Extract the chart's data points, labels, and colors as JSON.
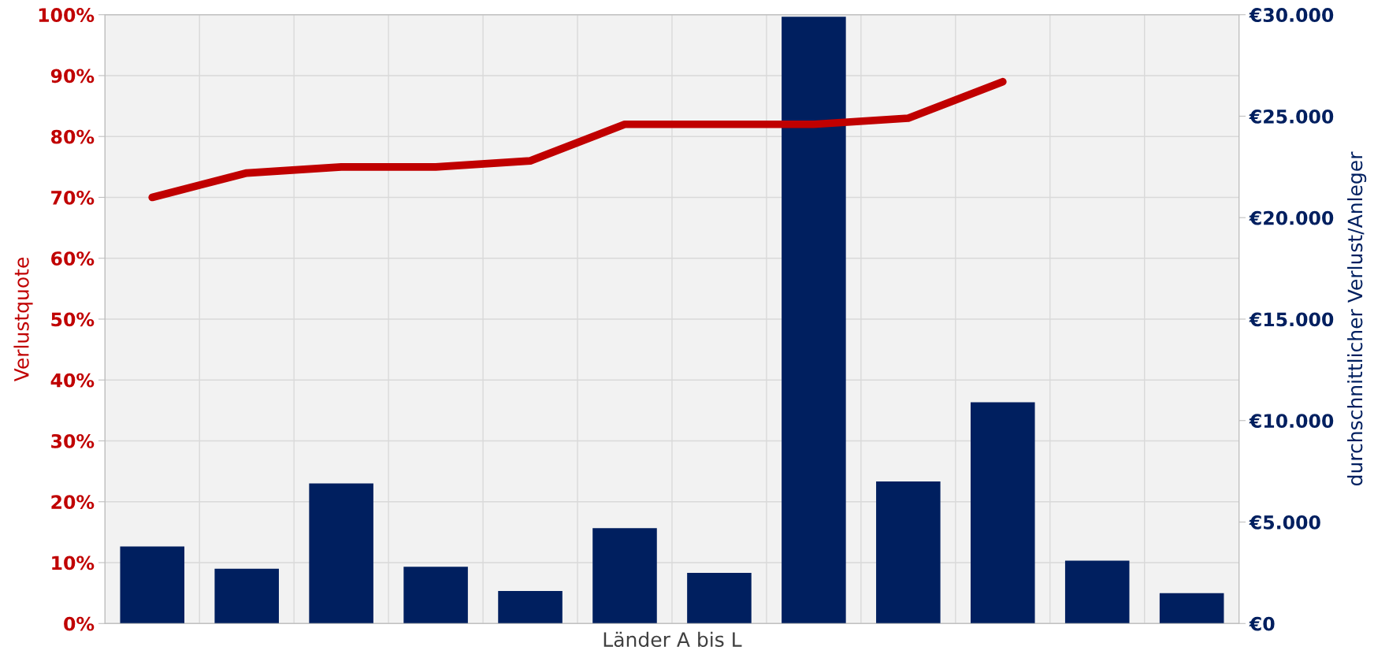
{
  "chart_data": {
    "type": "bar",
    "xlabel": "Länder A bis L",
    "ylabel": "Verlustquote",
    "y2label": "durchschnittlicher Verlust/Anleger",
    "categories": [
      null,
      null,
      null,
      null,
      null,
      null,
      null,
      null,
      null,
      null,
      null,
      null
    ],
    "series": [
      {
        "axis": "y2",
        "color": "#001f5f",
        "values": [
          3800,
          2700,
          6900,
          2800,
          1600,
          4700,
          2500,
          29900,
          7000,
          10900,
          3100,
          1500
        ]
      },
      {
        "type": "line",
        "axis": "y",
        "color": "#c00000",
        "values": [
          70,
          74,
          75,
          75,
          76,
          82,
          82,
          82,
          83,
          89,
          null,
          null
        ]
      }
    ],
    "ylim": [
      0,
      100
    ],
    "yticks": [
      {
        "value": 0,
        "label": "0%"
      },
      {
        "value": 10,
        "label": "10%"
      },
      {
        "value": 20,
        "label": "20%"
      },
      {
        "value": 30,
        "label": "30%"
      },
      {
        "value": 40,
        "label": "40%"
      },
      {
        "value": 50,
        "label": "50%"
      },
      {
        "value": 60,
        "label": "60%"
      },
      {
        "value": 70,
        "label": "70%"
      },
      {
        "value": 80,
        "label": "80%"
      },
      {
        "value": 90,
        "label": "90%"
      },
      {
        "value": 100,
        "label": "100%"
      }
    ],
    "y2lim": [
      0,
      30000
    ],
    "y2ticks": [
      {
        "value": 0,
        "label": "€0"
      },
      {
        "value": 5000,
        "label": "€5.000"
      },
      {
        "value": 10000,
        "label": "€10.000"
      },
      {
        "value": 15000,
        "label": "€15.000"
      },
      {
        "value": 20000,
        "label": "€20.000"
      },
      {
        "value": 25000,
        "label": "€25.000"
      },
      {
        "value": 30000,
        "label": "€30.000"
      }
    ],
    "grid": true,
    "legend": false,
    "marker": "none",
    "line_style": "solid"
  }
}
